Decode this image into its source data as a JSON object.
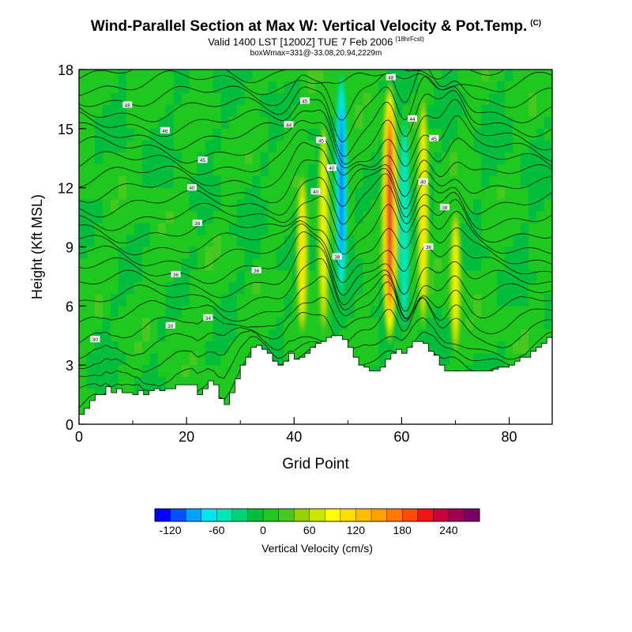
{
  "titles": {
    "main": "Wind-Parallel Section at Max W: Vertical Velocity & Pot.Temp.",
    "copyright": "(C)",
    "valid": "Valid 1400 LST [1200Z] TUE 7 Feb 2006",
    "forecast": "(18hrFcst)",
    "box": "boxWmax=331@-33.08,20.94,2229m"
  },
  "chart_data": {
    "type": "heatmap",
    "title": "Wind-Parallel Section at Max W: Vertical Velocity & Pot.Temp.",
    "xlabel": "Grid Point",
    "ylabel": "Height (Kft MSL)",
    "xlim": [
      0,
      88
    ],
    "ylim": [
      0,
      18
    ],
    "x_ticks": [
      "0",
      "20",
      "40",
      "60",
      "80"
    ],
    "x_tick_values": [
      0,
      20,
      40,
      60,
      80
    ],
    "y_ticks": [
      "0",
      "3",
      "6",
      "9",
      "12",
      "15",
      "18"
    ],
    "y_tick_values": [
      0,
      3,
      6,
      9,
      12,
      15,
      18
    ],
    "terrain": [
      [
        0,
        0.5
      ],
      [
        1,
        0.8
      ],
      [
        2,
        1.2
      ],
      [
        3,
        1.5
      ],
      [
        4,
        1.5
      ],
      [
        5,
        1.9
      ],
      [
        6,
        1.6
      ],
      [
        7,
        1.8
      ],
      [
        8,
        1.6
      ],
      [
        9,
        1.6
      ],
      [
        10,
        1.5
      ],
      [
        11,
        1.7
      ],
      [
        12,
        1.5
      ],
      [
        13,
        1.7
      ],
      [
        14,
        1.8
      ],
      [
        15,
        1.7
      ],
      [
        16,
        1.8
      ],
      [
        17,
        1.8
      ],
      [
        18,
        2.0
      ],
      [
        19,
        2.0
      ],
      [
        20,
        2.0
      ],
      [
        21,
        2.0
      ],
      [
        22,
        1.5
      ],
      [
        23,
        1.8
      ],
      [
        24,
        2.2
      ],
      [
        25,
        2.0
      ],
      [
        26,
        1.3
      ],
      [
        27,
        1.0
      ],
      [
        28,
        1.6
      ],
      [
        29,
        2.3
      ],
      [
        30,
        3.0
      ],
      [
        31,
        3.4
      ],
      [
        32,
        3.9
      ],
      [
        33,
        4.0
      ],
      [
        34,
        3.8
      ],
      [
        35,
        3.6
      ],
      [
        36,
        3.2
      ],
      [
        37,
        3.0
      ],
      [
        38,
        3.2
      ],
      [
        39,
        3.6
      ],
      [
        40,
        3.3
      ],
      [
        41,
        3.4
      ],
      [
        42,
        3.6
      ],
      [
        43,
        3.9
      ],
      [
        44,
        4.1
      ],
      [
        45,
        4.2
      ],
      [
        46,
        4.4
      ],
      [
        47,
        4.5
      ],
      [
        48,
        4.5
      ],
      [
        49,
        4.3
      ],
      [
        50,
        3.9
      ],
      [
        51,
        3.4
      ],
      [
        52,
        3.0
      ],
      [
        53,
        2.9
      ],
      [
        54,
        2.7
      ],
      [
        55,
        2.7
      ],
      [
        56,
        2.9
      ],
      [
        57,
        3.3
      ],
      [
        58,
        3.6
      ],
      [
        59,
        3.8
      ],
      [
        60,
        3.6
      ],
      [
        61,
        3.9
      ],
      [
        62,
        4.2
      ],
      [
        63,
        4.2
      ],
      [
        64,
        4.1
      ],
      [
        65,
        3.7
      ],
      [
        66,
        3.5
      ],
      [
        67,
        3.0
      ],
      [
        68,
        2.7
      ],
      [
        69,
        2.7
      ],
      [
        70,
        2.7
      ],
      [
        71,
        2.7
      ],
      [
        72,
        2.7
      ],
      [
        73,
        2.7
      ],
      [
        74,
        2.7
      ],
      [
        75,
        2.7
      ],
      [
        76,
        2.7
      ],
      [
        77,
        2.8
      ],
      [
        78,
        2.9
      ],
      [
        79,
        2.9
      ],
      [
        80,
        3.0
      ],
      [
        81,
        3.2
      ],
      [
        82,
        3.4
      ],
      [
        83,
        3.4
      ],
      [
        84,
        3.7
      ],
      [
        85,
        3.9
      ],
      [
        86,
        4.1
      ],
      [
        87,
        4.4
      ],
      [
        88,
        4.5
      ]
    ],
    "velocity_features": [
      {
        "label": "updraft",
        "x": 41.5,
        "y_bottom": 4.5,
        "y_top": 12.8,
        "peak_w": 110
      },
      {
        "label": "updraft",
        "x": 45.5,
        "y_bottom": 4.5,
        "y_top": 15.5,
        "peak_w": 95
      },
      {
        "label": "downdraft",
        "x": 48.8,
        "y_bottom": 6.5,
        "y_top": 17.8,
        "peak_w": -110
      },
      {
        "label": "updraft",
        "x": 57.8,
        "y_bottom": 4.0,
        "y_top": 17.5,
        "peak_w": 220
      },
      {
        "label": "downdraft",
        "x": 60.5,
        "y_bottom": 5.0,
        "y_top": 15.5,
        "peak_w": -55
      },
      {
        "label": "updraft",
        "x": 64.0,
        "y_bottom": 4.8,
        "y_top": 16.8,
        "peak_w": 110
      },
      {
        "label": "updraft",
        "x": 70.0,
        "y_bottom": 3.5,
        "y_top": 11.0,
        "peak_w": 95
      }
    ],
    "colorbar": {
      "label": "Vertical Velocity (cm/s)",
      "tick_labels": [
        "-120",
        "-60",
        "0",
        "60",
        "120",
        "180",
        "240"
      ],
      "colors": [
        "#0000ff",
        "#0050ff",
        "#00a0ff",
        "#00e6f0",
        "#00e6b4",
        "#00d278",
        "#00be3c",
        "#1ec81e",
        "#46c81e",
        "#96d200",
        "#c8e600",
        "#ffff00",
        "#ffdc00",
        "#ffbe00",
        "#ffa000",
        "#ff7800",
        "#ff4b00",
        "#f01414",
        "#c8003c",
        "#a00050",
        "#780064"
      ]
    },
    "isentrope_labels": [
      {
        "text": "48",
        "x": 9,
        "y": 16.2
      },
      {
        "text": "46",
        "x": 16,
        "y": 14.9
      },
      {
        "text": "45",
        "x": 23,
        "y": 13.4
      },
      {
        "text": "40",
        "x": 21,
        "y": 12.0
      },
      {
        "text": "38",
        "x": 22,
        "y": 10.2
      },
      {
        "text": "36",
        "x": 18,
        "y": 7.6
      },
      {
        "text": "34",
        "x": 24,
        "y": 5.4
      },
      {
        "text": "30",
        "x": 17,
        "y": 5.0
      },
      {
        "text": "30",
        "x": 3,
        "y": 4.3
      },
      {
        "text": "36",
        "x": 33,
        "y": 7.8
      },
      {
        "text": "45",
        "x": 42,
        "y": 16.4
      },
      {
        "text": "44",
        "x": 39,
        "y": 15.2
      },
      {
        "text": "45",
        "x": 45,
        "y": 14.4
      },
      {
        "text": "40",
        "x": 47,
        "y": 13.0
      },
      {
        "text": "40",
        "x": 44,
        "y": 11.8
      },
      {
        "text": "38",
        "x": 48,
        "y": 8.5
      },
      {
        "text": "48",
        "x": 58,
        "y": 17.6
      },
      {
        "text": "44",
        "x": 62,
        "y": 15.5
      },
      {
        "text": "45",
        "x": 66,
        "y": 14.5
      },
      {
        "text": "40",
        "x": 64,
        "y": 12.3
      },
      {
        "text": "38",
        "x": 68,
        "y": 11.0
      },
      {
        "text": "38",
        "x": 65,
        "y": 9.0
      }
    ]
  }
}
